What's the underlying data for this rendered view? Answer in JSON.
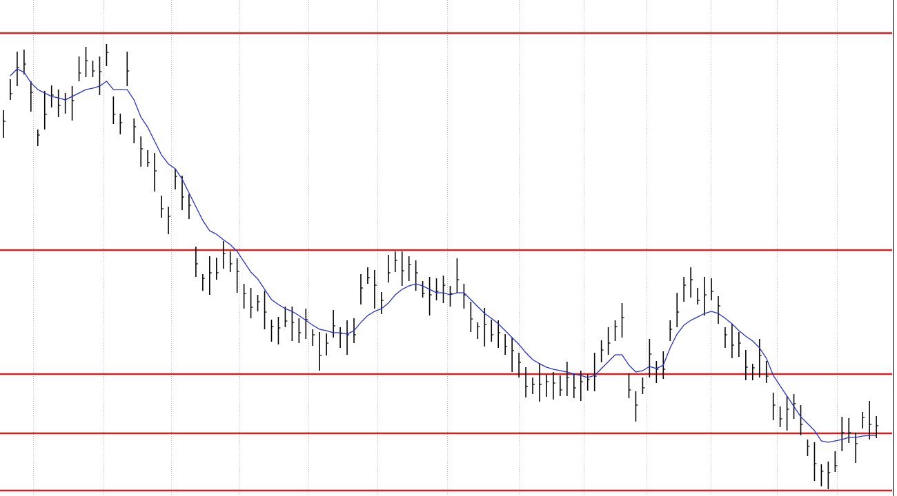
{
  "chart_data": {
    "type": "ohlc",
    "x": [
      0,
      1,
      2,
      3,
      4,
      5,
      6,
      7,
      8,
      9,
      10,
      11,
      12,
      13,
      14,
      15,
      16,
      17,
      18,
      19,
      20,
      21,
      22,
      23,
      24,
      25,
      26,
      27,
      28,
      29,
      30,
      31,
      32,
      33,
      34,
      35,
      36,
      37,
      38,
      39,
      40,
      41,
      42,
      43,
      44,
      45,
      46,
      47,
      48,
      49,
      50,
      51,
      52,
      53,
      54,
      55,
      56,
      57,
      58,
      59,
      60,
      61,
      62,
      63,
      64,
      65,
      66,
      67,
      68,
      69,
      70,
      71,
      72,
      73,
      74,
      75,
      76,
      77,
      78,
      79,
      80,
      81,
      82,
      83,
      84,
      85,
      86,
      87,
      88,
      89,
      90,
      91,
      92,
      93,
      94,
      95,
      96,
      97,
      98,
      99,
      100,
      101,
      102,
      103,
      104,
      105,
      106,
      107,
      108,
      109,
      110,
      111,
      112,
      113,
      114,
      115,
      116,
      117,
      118,
      119,
      120,
      121,
      122,
      123,
      124,
      125,
      126,
      127
    ],
    "high": [
      560,
      605,
      645,
      648,
      602,
      532,
      588,
      596,
      590,
      585,
      595,
      638,
      652,
      632,
      638,
      656,
      580,
      555,
      645,
      548,
      522,
      502,
      498,
      436,
      420,
      475,
      465,
      438,
      362,
      322,
      348,
      346,
      370,
      355,
      345,
      308,
      302,
      292,
      298,
      256,
      260,
      275,
      275,
      258,
      272,
      242,
      238,
      236,
      270,
      245,
      255,
      258,
      322,
      332,
      328,
      296,
      350,
      355,
      355,
      348,
      342,
      312,
      318,
      316,
      320,
      305,
      345,
      308,
      282,
      252,
      273,
      256,
      255,
      235,
      230,
      208,
      187,
      172,
      193,
      176,
      180,
      175,
      195,
      178,
      182,
      177,
      208,
      226,
      245,
      255,
      280,
      178,
      152,
      172,
      228,
      196,
      210,
      255,
      295,
      318,
      332,
      302,
      318,
      316,
      290,
      245,
      250,
      238,
      212,
      192,
      228,
      196,
      150,
      130,
      145,
      148,
      132,
      82,
      78,
      46,
      50,
      65,
      115,
      113,
      92,
      122,
      138,
      116
    ],
    "low": [
      520,
      575,
      595,
      612,
      558,
      508,
      532,
      564,
      550,
      555,
      545,
      602,
      608,
      608,
      582,
      624,
      540,
      525,
      595,
      512,
      478,
      478,
      442,
      404,
      380,
      445,
      415,
      402,
      318,
      298,
      292,
      314,
      330,
      325,
      295,
      272,
      258,
      268,
      242,
      224,
      220,
      245,
      225,
      222,
      228,
      218,
      182,
      204,
      230,
      215,
      205,
      222,
      278,
      308,
      272,
      264,
      310,
      325,
      305,
      312,
      298,
      288,
      262,
      284,
      280,
      275,
      295,
      272,
      238,
      228,
      217,
      224,
      215,
      205,
      180,
      172,
      143,
      148,
      137,
      144,
      140,
      145,
      145,
      142,
      138,
      153,
      152,
      194,
      205,
      225,
      230,
      142,
      108,
      148,
      172,
      164,
      170,
      225,
      245,
      282,
      288,
      278,
      262,
      284,
      250,
      215,
      200,
      202,
      168,
      168,
      172,
      164,
      110,
      100,
      95,
      112,
      88,
      58,
      22,
      14,
      10,
      35,
      65,
      77,
      48,
      98,
      82,
      84
    ],
    "close": [
      544,
      584,
      622,
      627,
      586,
      524,
      554,
      582,
      567,
      576,
      574,
      614,
      632,
      617,
      616,
      644,
      554,
      542,
      617,
      536,
      504,
      484,
      472,
      417,
      406,
      464,
      434,
      422,
      337,
      316,
      324,
      324,
      352,
      337,
      326,
      294,
      274,
      282,
      267,
      246,
      244,
      254,
      252,
      237,
      256,
      234,
      204,
      222,
      247,
      236,
      234,
      234,
      302,
      317,
      306,
      284,
      324,
      342,
      327,
      336,
      324,
      294,
      292,
      297,
      306,
      294,
      314,
      292,
      257,
      246,
      249,
      234,
      237,
      217,
      211,
      194,
      159,
      162,
      162,
      166,
      164,
      154,
      172,
      157,
      166,
      169,
      174,
      212,
      222,
      246,
      259,
      154,
      132,
      157,
      206,
      184,
      184,
      242,
      267,
      306,
      314,
      284,
      292,
      297,
      276,
      234,
      219,
      222,
      187,
      186,
      204,
      174,
      132,
      112,
      126,
      134,
      104,
      72,
      47,
      36,
      34,
      44,
      92,
      92,
      76,
      114,
      104,
      102
    ],
    "ma": [
      null,
      610,
      620,
      615,
      600,
      590,
      585,
      580,
      578,
      575,
      580,
      585,
      590,
      592,
      595,
      602,
      590,
      590,
      590,
      575,
      550,
      535,
      515,
      495,
      482,
      475,
      460,
      440,
      420,
      400,
      385,
      380,
      372,
      365,
      355,
      340,
      325,
      315,
      300,
      285,
      278,
      272,
      268,
      262,
      255,
      248,
      242,
      240,
      237,
      237,
      235,
      240,
      252,
      262,
      268,
      272,
      280,
      292,
      300,
      305,
      308,
      305,
      300,
      295,
      295,
      292,
      295,
      295,
      285,
      275,
      265,
      258,
      250,
      240,
      230,
      220,
      208,
      198,
      192,
      187,
      184,
      182,
      180,
      177,
      175,
      172,
      175,
      185,
      195,
      205,
      205,
      190,
      180,
      182,
      188,
      185,
      190,
      215,
      235,
      248,
      255,
      260,
      265,
      268,
      265,
      258,
      250,
      240,
      232,
      225,
      215,
      200,
      175,
      160,
      145,
      130,
      115,
      105,
      95,
      80,
      78,
      80,
      82,
      85,
      85,
      87,
      88,
      88
    ],
    "bar_color": "#000000",
    "ma_color": "#2430c8",
    "levels": [
      672,
      357,
      177,
      91,
      8
    ],
    "level_color": "#d42020",
    "xlim": [
      -0.5,
      129.3
    ],
    "ylim": [
      0,
      720
    ],
    "xticks": [
      4.3,
      14.6,
      24.4,
      34.3,
      44.4,
      54.4,
      64.6,
      75,
      84.4,
      93.6,
      102.9,
      112.5,
      121.3
    ],
    "grid": true
  }
}
